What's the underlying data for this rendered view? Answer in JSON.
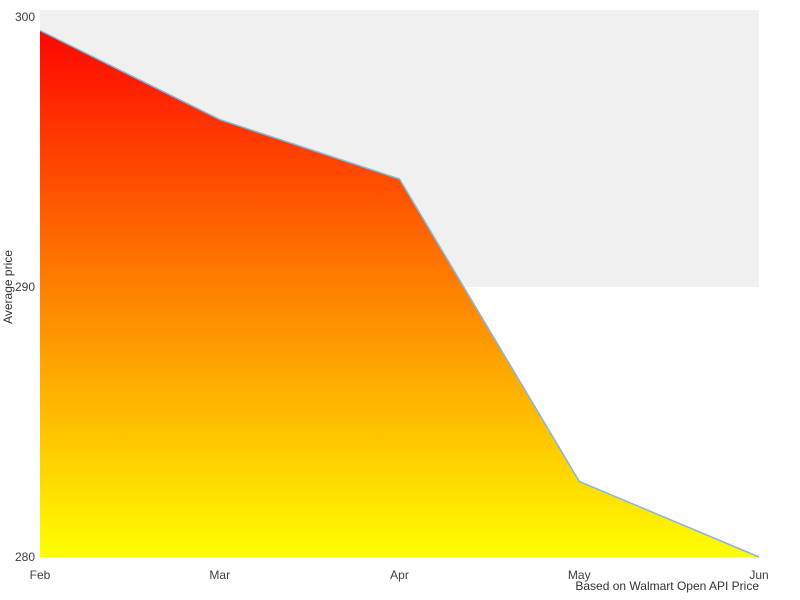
{
  "chart_data": {
    "type": "area",
    "title": "",
    "categories": [
      "Feb",
      "Mar",
      "Apr",
      "May",
      "Jun"
    ],
    "values": [
      299.5,
      296.2,
      294.0,
      282.8,
      280.0
    ],
    "xlabel": "",
    "ylabel": "Average price",
    "ylim": [
      280,
      300
    ],
    "yticks": [
      300,
      290,
      280
    ],
    "grid": "off",
    "legend": "none",
    "caption": "Based on Walmart Open API Price",
    "band_range": [
      290,
      300
    ],
    "colors": {
      "band": "#f0f0f0",
      "line": "#86b7d9",
      "gradient_top": "#ff0000",
      "gradient_bottom": "#ffff00",
      "background": "#ffffff"
    }
  }
}
